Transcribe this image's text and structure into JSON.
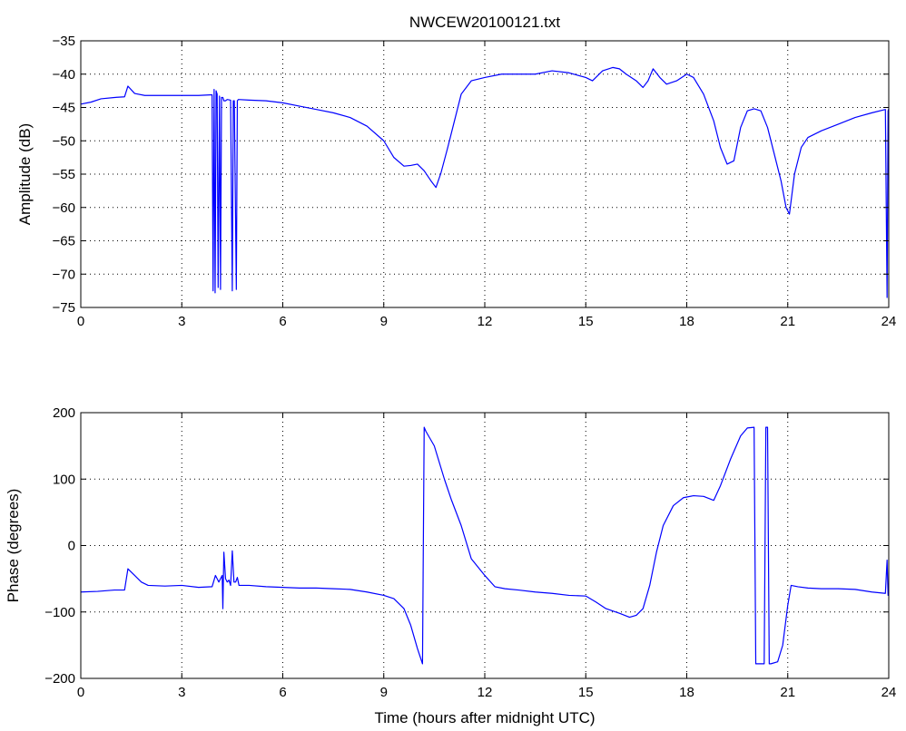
{
  "chart_data": [
    {
      "type": "line",
      "title": "NWCEW20100121.txt",
      "xlabel": "",
      "ylabel": "Amplitude (dB)",
      "xlim": [
        0,
        24
      ],
      "ylim": [
        -75,
        -35
      ],
      "xticks": [
        0,
        3,
        6,
        9,
        12,
        15,
        18,
        21,
        24
      ],
      "xtick_labels": [
        "0",
        "3",
        "6",
        "9",
        "12",
        "15",
        "18",
        "21",
        "24"
      ],
      "yticks": [
        -35,
        -40,
        -45,
        -50,
        -55,
        -60,
        -65,
        -70,
        -75
      ],
      "ytick_labels": [
        "−35",
        "−40",
        "−45",
        "−50",
        "−55",
        "−60",
        "−65",
        "−70",
        "−75"
      ],
      "grid": true,
      "line_color": "#0000ff",
      "series": [
        {
          "x": [
            0,
            0.3,
            0.6,
            1.0,
            1.3,
            1.4,
            1.6,
            1.9,
            2.5,
            3.0,
            3.5,
            3.9,
            3.93,
            3.96,
            3.99,
            4.02,
            4.05,
            4.08,
            4.12,
            4.15,
            4.18,
            4.22,
            4.25,
            4.3,
            4.35,
            4.45,
            4.5,
            4.53,
            4.56,
            4.62,
            4.65,
            4.68,
            5.0,
            5.5,
            6.0,
            6.5,
            7.0,
            7.5,
            8.0,
            8.5,
            9.0,
            9.3,
            9.6,
            9.8,
            10.0,
            10.2,
            10.4,
            10.55,
            10.7,
            10.9,
            11.1,
            11.3,
            11.6,
            12.0,
            12.5,
            13.0,
            13.5,
            14.0,
            14.5,
            15.0,
            15.2,
            15.5,
            15.8,
            16.0,
            16.2,
            16.5,
            16.7,
            16.85,
            17.0,
            17.2,
            17.4,
            17.7,
            18.0,
            18.2,
            18.5,
            18.8,
            19.0,
            19.2,
            19.4,
            19.6,
            19.8,
            20.0,
            20.2,
            20.4,
            20.6,
            20.8,
            20.95,
            21.05,
            21.2,
            21.4,
            21.6,
            22.0,
            22.5,
            23.0,
            23.5,
            23.9,
            23.95,
            23.98,
            24.0
          ],
          "y": [
            -44.5,
            -44.2,
            -43.7,
            -43.5,
            -43.4,
            -41.8,
            -42.9,
            -43.2,
            -43.2,
            -43.2,
            -43.2,
            -43.1,
            -72.5,
            -42.3,
            -72.8,
            -42.5,
            -43.0,
            -72.0,
            -43.3,
            -72.3,
            -43.5,
            -43.5,
            -44.0,
            -44.0,
            -43.8,
            -43.9,
            -72.5,
            -44.0,
            -44.0,
            -72.3,
            -44.0,
            -43.8,
            -43.9,
            -44.0,
            -44.3,
            -44.8,
            -45.3,
            -45.8,
            -46.5,
            -47.8,
            -50.0,
            -52.5,
            -53.8,
            -53.7,
            -53.5,
            -54.5,
            -56.0,
            -57.0,
            -54.8,
            -51.0,
            -47.0,
            -43.0,
            -41.0,
            -40.5,
            -40.0,
            -40.0,
            -40.0,
            -39.5,
            -39.8,
            -40.5,
            -41.0,
            -39.5,
            -39.0,
            -39.2,
            -40.0,
            -41.0,
            -42.0,
            -41.0,
            -39.2,
            -40.5,
            -41.5,
            -41.0,
            -40.0,
            -40.5,
            -43.0,
            -47.0,
            -51.0,
            -53.5,
            -53.0,
            -48.0,
            -45.5,
            -45.2,
            -45.5,
            -48.0,
            -52.0,
            -56.0,
            -60.0,
            -61.0,
            -55.0,
            -51.0,
            -49.5,
            -48.5,
            -47.5,
            -46.5,
            -45.8,
            -45.3,
            -73.5,
            -45.5,
            -45.2
          ]
        }
      ]
    },
    {
      "type": "line",
      "title": "",
      "xlabel": "Time (hours after midnight UTC)",
      "ylabel": "Phase (degrees)",
      "xlim": [
        0,
        24
      ],
      "ylim": [
        -200,
        200
      ],
      "xticks": [
        0,
        3,
        6,
        9,
        12,
        15,
        18,
        21,
        24
      ],
      "xtick_labels": [
        "0",
        "3",
        "6",
        "9",
        "12",
        "15",
        "18",
        "21",
        "24"
      ],
      "yticks": [
        200,
        100,
        0,
        -100,
        -200
      ],
      "ytick_labels": [
        "200",
        "100",
        "0",
        "−100",
        "−200"
      ],
      "grid": true,
      "line_color": "#0000ff",
      "series": [
        {
          "x": [
            0,
            0.5,
            1.0,
            1.3,
            1.4,
            1.6,
            1.8,
            2.0,
            2.5,
            3.0,
            3.5,
            3.9,
            4.0,
            4.1,
            4.2,
            4.22,
            4.25,
            4.3,
            4.35,
            4.4,
            4.45,
            4.5,
            4.55,
            4.6,
            4.65,
            4.7,
            5.0,
            5.5,
            6.0,
            6.5,
            7.0,
            7.5,
            8.0,
            8.5,
            9.0,
            9.3,
            9.6,
            9.8,
            10.0,
            10.15,
            10.2,
            10.25,
            10.5,
            10.8,
            11.0,
            11.3,
            11.6,
            12.0,
            12.3,
            12.6,
            13.0,
            13.5,
            14.0,
            14.5,
            15.0,
            15.3,
            15.6,
            16.0,
            16.3,
            16.5,
            16.7,
            16.9,
            17.1,
            17.3,
            17.6,
            17.9,
            18.2,
            18.5,
            18.8,
            19.0,
            19.3,
            19.6,
            19.8,
            20.0,
            20.05,
            20.3,
            20.35,
            20.4,
            20.45,
            20.5,
            20.7,
            20.85,
            21.0,
            21.1,
            21.3,
            21.6,
            22.0,
            22.5,
            23.0,
            23.5,
            23.9,
            23.95,
            23.98,
            24.0
          ],
          "y": [
            -70,
            -69,
            -67,
            -67,
            -35,
            -45,
            -55,
            -60,
            -61,
            -60,
            -63,
            -62,
            -45,
            -55,
            -45,
            -95,
            -10,
            -50,
            -55,
            -52,
            -60,
            -8,
            -55,
            -55,
            -48,
            -60,
            -60,
            -62,
            -63,
            -64,
            -64,
            -65,
            -66,
            -70,
            -75,
            -80,
            -95,
            -120,
            -155,
            -178,
            178,
            172,
            150,
            100,
            70,
            30,
            -20,
            -45,
            -62,
            -65,
            -67,
            -70,
            -72,
            -75,
            -76,
            -85,
            -95,
            -102,
            -108,
            -105,
            -95,
            -60,
            -10,
            30,
            60,
            72,
            75,
            74,
            68,
            90,
            130,
            165,
            177,
            178,
            -178,
            -178,
            178,
            178,
            -178,
            -178,
            -175,
            -150,
            -90,
            -60,
            -62,
            -64,
            -65,
            -65,
            -66,
            -70,
            -72,
            -22,
            -75,
            -70
          ]
        }
      ]
    }
  ]
}
